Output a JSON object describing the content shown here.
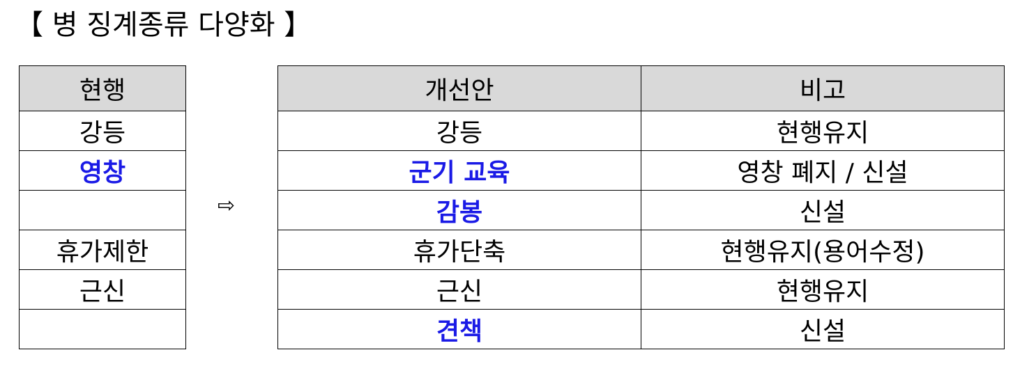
{
  "title": "【 병 징계종류 다양화 】",
  "accent_color": "#1a1ae6",
  "arrow_icon": "right-arrow-outline",
  "arrow_glyph": "⇨",
  "current": {
    "header": "현행",
    "rows": [
      {
        "text": "강등",
        "highlight": false
      },
      {
        "text": "영창",
        "highlight": true
      },
      {
        "text": "",
        "highlight": false
      },
      {
        "text": "휴가제한",
        "highlight": false
      },
      {
        "text": "근신",
        "highlight": false
      },
      {
        "text": "",
        "highlight": false
      }
    ]
  },
  "proposal": {
    "headers": [
      "개선안",
      "비고"
    ],
    "rows": [
      {
        "plan": "강등",
        "note": "현행유지",
        "highlight": false
      },
      {
        "plan": "군기 교육",
        "note": "영창 폐지 / 신설",
        "highlight": true
      },
      {
        "plan": "감봉",
        "note": "신설",
        "highlight": true
      },
      {
        "plan": "휴가단축",
        "note": "현행유지(용어수정)",
        "highlight": false
      },
      {
        "plan": "근신",
        "note": "현행유지",
        "highlight": false
      },
      {
        "plan": "견책",
        "note": "신설",
        "highlight": true
      }
    ]
  }
}
